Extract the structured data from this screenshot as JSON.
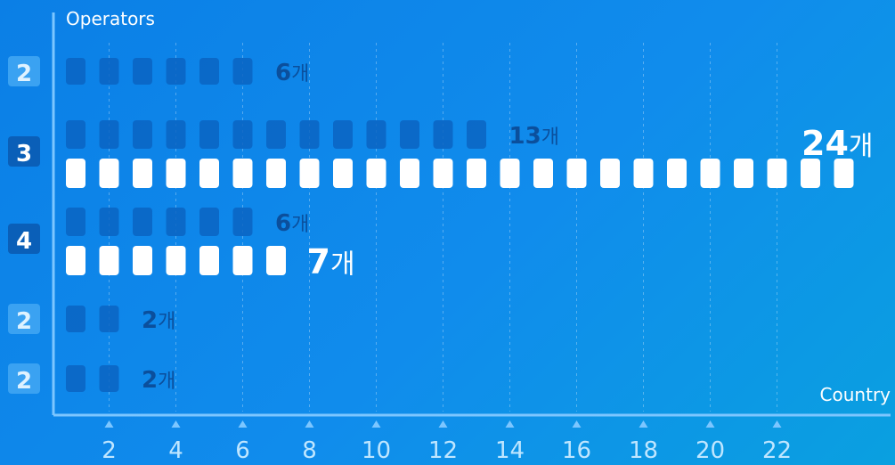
{
  "chart_data": {
    "type": "bar",
    "ylabel": "Operators",
    "xlabel": "Country",
    "unit": "개",
    "xticks": [
      2,
      4,
      6,
      8,
      10,
      12,
      14,
      16,
      18,
      20,
      22
    ],
    "rows": [
      {
        "label": "2",
        "highlight": false,
        "bars": [
          {
            "value": 6,
            "highlight": false
          }
        ]
      },
      {
        "label": "3",
        "highlight": true,
        "bars": [
          {
            "value": 13,
            "highlight": false
          },
          {
            "value": 24,
            "highlight": true
          }
        ]
      },
      {
        "label": "4",
        "highlight": true,
        "bars": [
          {
            "value": 6,
            "highlight": false
          },
          {
            "value": 7,
            "highlight": true
          }
        ]
      },
      {
        "label": "2",
        "highlight": false,
        "bars": [
          {
            "value": 2,
            "highlight": false
          }
        ]
      },
      {
        "label": "2",
        "highlight": false,
        "bars": [
          {
            "value": 2,
            "highlight": false
          }
        ]
      }
    ],
    "colors": {
      "background_start": "#0b7fe6",
      "background_end": "#0aa0e0",
      "highlight_bar": "#ffffff",
      "dim_bar": "#0a64c2",
      "highlight_label": "#ffffff",
      "dim_label": "#0b4f9c",
      "label_box_dim": "#3aa2f2",
      "label_box_highlight": "#0a5fb8",
      "axis": "#7cc6ff"
    }
  }
}
